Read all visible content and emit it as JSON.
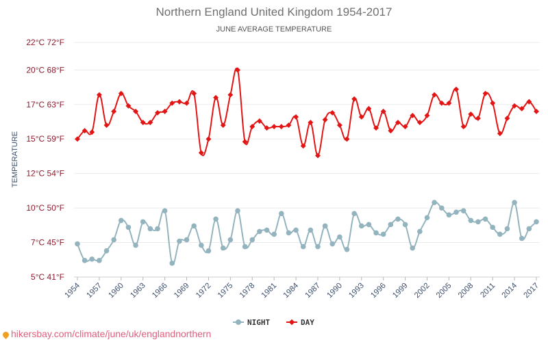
{
  "chart_data": {
    "type": "line",
    "title": "Northern England United Kingdom 1954-2017",
    "subtitle": "JUNE AVERAGE TEMPERATURE",
    "ylabel": "TEMPERATURE",
    "ylim": [
      5,
      22
    ],
    "yticks": [
      {
        "value": 22,
        "label": "22°C 72°F"
      },
      {
        "value": 20,
        "label": "20°C 68°F"
      },
      {
        "value": 17.5,
        "label": "17°C 63°F"
      },
      {
        "value": 15,
        "label": "15°C 59°F"
      },
      {
        "value": 12.5,
        "label": "12°C 54°F"
      },
      {
        "value": 10,
        "label": "10°C 50°F"
      },
      {
        "value": 7.5,
        "label": "7°C 45°F"
      },
      {
        "value": 5,
        "label": "5°C 41°F"
      }
    ],
    "x": [
      1954,
      1955,
      1956,
      1957,
      1958,
      1959,
      1960,
      1961,
      1962,
      1963,
      1964,
      1965,
      1966,
      1967,
      1968,
      1969,
      1970,
      1971,
      1972,
      1973,
      1974,
      1975,
      1976,
      1977,
      1978,
      1979,
      1980,
      1981,
      1982,
      1983,
      1984,
      1985,
      1986,
      1987,
      1988,
      1989,
      1990,
      1991,
      1992,
      1993,
      1994,
      1995,
      1996,
      1997,
      1998,
      1999,
      2000,
      2001,
      2002,
      2003,
      2004,
      2005,
      2006,
      2007,
      2008,
      2009,
      2010,
      2011,
      2012,
      2013,
      2014,
      2015,
      2016,
      2017
    ],
    "xtick_labels": [
      "1954",
      "1957",
      "1960",
      "1963",
      "1966",
      "1969",
      "1972",
      "1975",
      "1978",
      "1981",
      "1984",
      "1987",
      "1990",
      "1993",
      "1996",
      "1999",
      "2002",
      "2005",
      "2008",
      "2011",
      "2014",
      "2017"
    ],
    "series": [
      {
        "name": "NIGHT",
        "color": "#93b4be",
        "values": [
          7.4,
          6.2,
          6.3,
          6.2,
          6.9,
          7.7,
          9.1,
          8.6,
          7.3,
          9.0,
          8.5,
          8.5,
          9.8,
          6.0,
          7.6,
          7.7,
          8.7,
          7.3,
          6.9,
          9.2,
          7.1,
          7.7,
          9.8,
          7.2,
          7.7,
          8.3,
          8.4,
          8.1,
          9.6,
          8.2,
          8.4,
          7.2,
          8.4,
          7.2,
          8.7,
          7.4,
          7.9,
          7.0,
          9.6,
          8.7,
          8.8,
          8.2,
          8.1,
          8.8,
          9.2,
          8.8,
          7.1,
          8.3,
          9.3,
          10.4,
          10.0,
          9.5,
          9.7,
          9.8,
          9.1,
          9.0,
          9.2,
          8.6,
          8.1,
          8.5,
          10.4,
          7.8,
          8.5,
          9.0
        ]
      },
      {
        "name": "DAY",
        "color": "#e31414",
        "values": [
          15.0,
          15.6,
          15.5,
          18.2,
          16.0,
          17.0,
          18.3,
          17.4,
          17.0,
          16.2,
          16.2,
          16.9,
          17.0,
          17.6,
          17.7,
          17.6,
          18.3,
          14.0,
          15.0,
          18.0,
          16.0,
          18.2,
          20.0,
          14.8,
          15.9,
          16.3,
          15.8,
          15.9,
          15.9,
          16.0,
          16.6,
          14.5,
          16.2,
          13.8,
          16.4,
          16.9,
          16.0,
          15.0,
          17.9,
          16.6,
          17.2,
          15.8,
          17.0,
          15.6,
          16.2,
          15.9,
          16.7,
          16.2,
          16.7,
          18.2,
          17.6,
          17.6,
          18.6,
          15.9,
          16.8,
          16.5,
          18.3,
          17.6,
          15.4,
          16.5,
          17.4,
          17.2,
          17.7,
          17.0
        ]
      }
    ],
    "legend": {
      "placement": "bottom-center",
      "entries": [
        "NIGHT",
        "DAY"
      ]
    },
    "grid": true
  },
  "footer": {
    "text": "hikersbay.com/climate/june/uk/englandnorthern"
  }
}
